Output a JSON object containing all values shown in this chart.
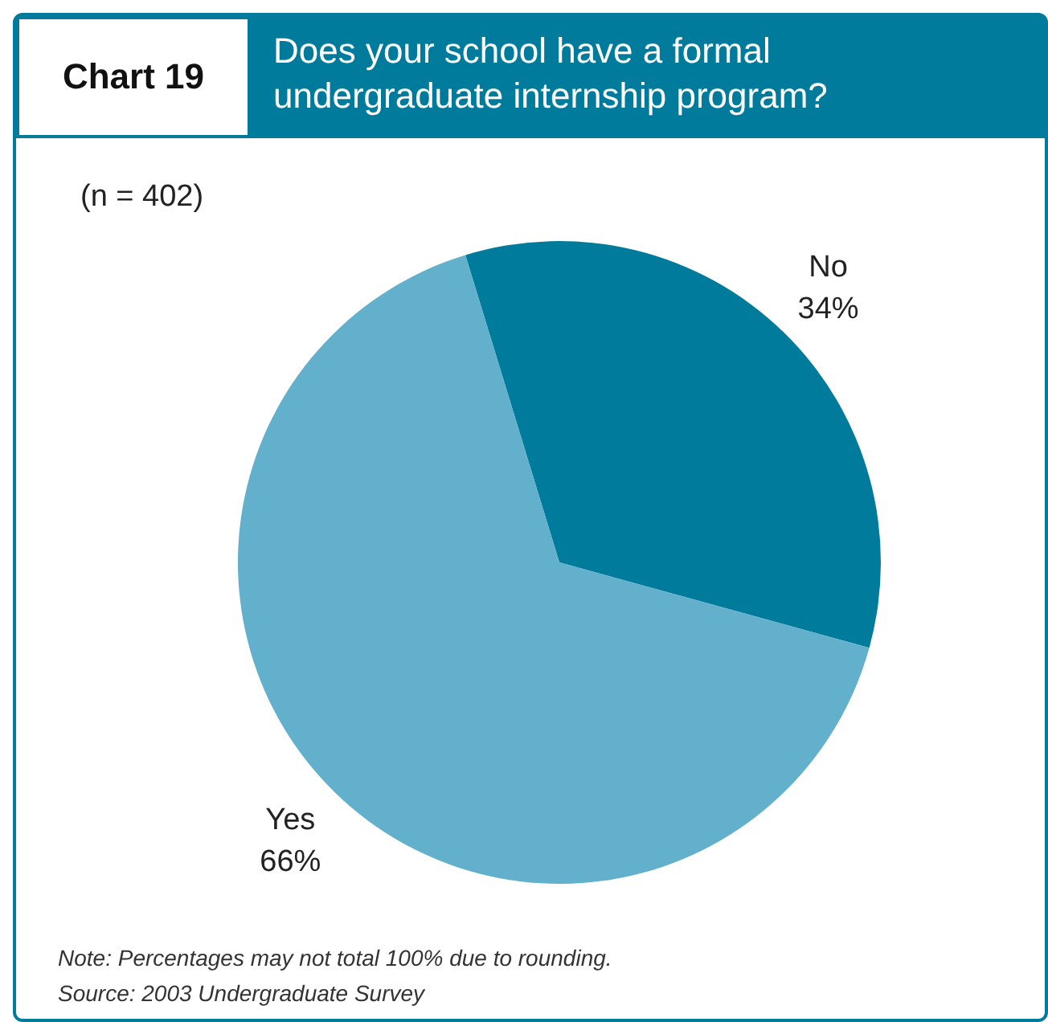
{
  "chart_data": {
    "type": "pie",
    "title": "Does your school have a formal undergraduate internship program?",
    "subtitle": "(n = 402)",
    "categories": [
      "No",
      "Yes"
    ],
    "values": [
      34,
      66
    ],
    "colors": [
      "#007b9c",
      "#62b0cc"
    ],
    "value_labels": [
      "34%",
      "66%"
    ],
    "annotations": [
      "Chart 19",
      "Note: Percentages may not total 100% due to rounding.",
      "Source: 2003 Undergraduate Survey"
    ]
  }
}
